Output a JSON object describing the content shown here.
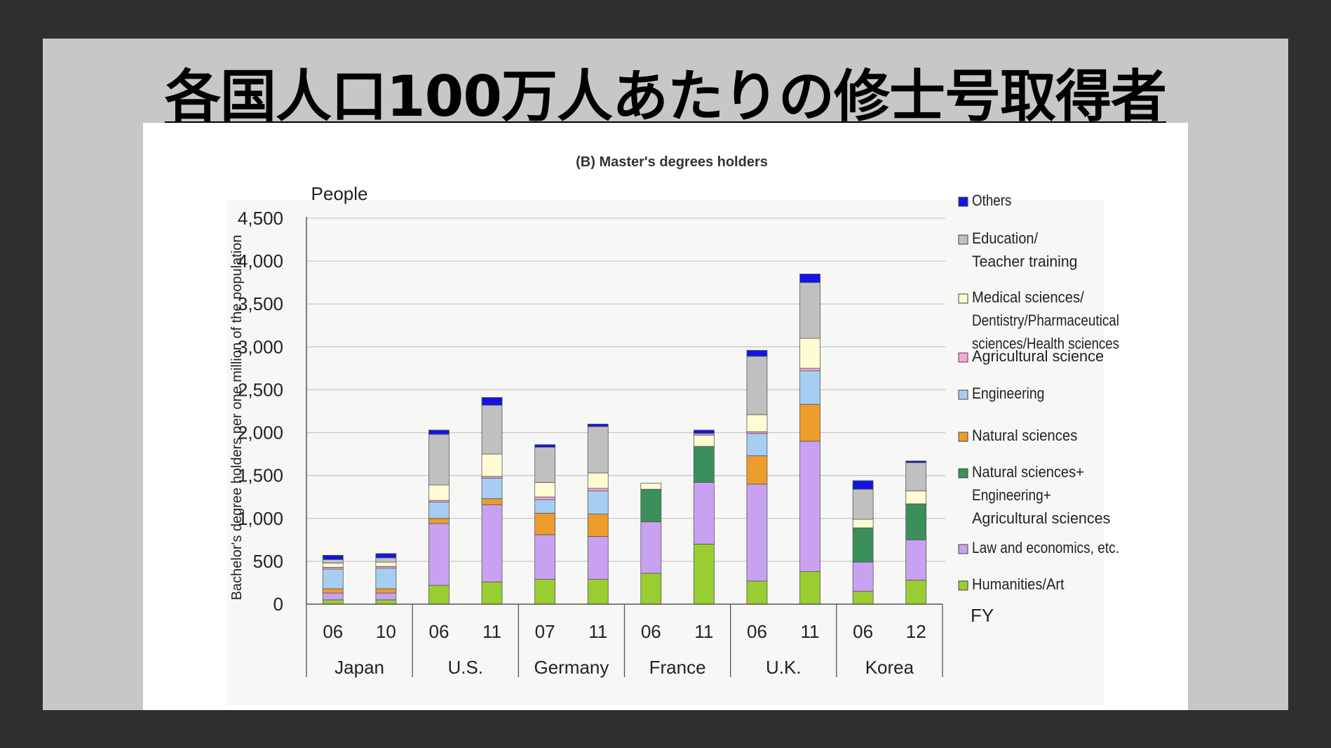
{
  "slide": {
    "title": "各国人口100万人あたりの修士号取得者"
  },
  "chart_data": {
    "type": "bar",
    "stacked": true,
    "title": "(B) Master's degrees holders",
    "unit_label": "People",
    "ylabel": "Bachelor's degree holders per one million of the population",
    "xlabel": "FY",
    "ylim": [
      0,
      4500
    ],
    "yticks": [
      0,
      500,
      1000,
      1500,
      2000,
      2500,
      3000,
      3500,
      4000,
      4500
    ],
    "ytick_labels": [
      "0",
      "500",
      "1,000",
      "1,500",
      "2,000",
      "2,500",
      "3,000",
      "3,500",
      "4,000",
      "4,500"
    ],
    "grid": true,
    "legend_position": "right",
    "groups": [
      {
        "name": "Japan",
        "years": [
          "06",
          "10"
        ]
      },
      {
        "name": "U.S.",
        "years": [
          "06",
          "11"
        ]
      },
      {
        "name": "Germany",
        "years": [
          "07",
          "11"
        ]
      },
      {
        "name": "France",
        "years": [
          "06",
          "11"
        ]
      },
      {
        "name": "U.K.",
        "years": [
          "06",
          "11"
        ]
      },
      {
        "name": "Korea",
        "years": [
          "06",
          "12"
        ]
      }
    ],
    "series": [
      {
        "name": "Humanities/Art",
        "color": "#9acd32",
        "values": [
          50,
          50,
          220,
          260,
          290,
          290,
          360,
          700,
          270,
          380,
          150,
          280
        ]
      },
      {
        "name": "Law and economics, etc.",
        "color": "#c8a2f0",
        "values": [
          80,
          80,
          720,
          900,
          520,
          500,
          600,
          720,
          1130,
          1520,
          340,
          470
        ]
      },
      {
        "name": "Natural sciences+\nEngineering+\nAgricultural sciences",
        "color": "#3a8f5a",
        "values": [
          0,
          0,
          0,
          0,
          0,
          0,
          380,
          420,
          0,
          0,
          400,
          420
        ]
      },
      {
        "name": "Natural sciences",
        "color": "#ed9c2e",
        "values": [
          50,
          50,
          60,
          70,
          250,
          260,
          0,
          0,
          330,
          430,
          0,
          0
        ]
      },
      {
        "name": "Engineering",
        "color": "#a8cdf2",
        "values": [
          230,
          240,
          190,
          240,
          160,
          270,
          0,
          0,
          260,
          390,
          0,
          0
        ]
      },
      {
        "name": "Agricultural science",
        "color": "#f7a8d2",
        "values": [
          20,
          20,
          20,
          20,
          30,
          30,
          0,
          0,
          20,
          30,
          0,
          0
        ]
      },
      {
        "name": "Medical sciences/\nDentistry/Pharmaceutical\nsciences/Health sciences",
        "color": "#fffbd2",
        "values": [
          50,
          50,
          180,
          260,
          170,
          180,
          70,
          130,
          200,
          350,
          100,
          150
        ]
      },
      {
        "name": "Education/\nTeacher training",
        "color": "#c0c0c0",
        "values": [
          40,
          50,
          590,
          570,
          410,
          540,
          0,
          20,
          680,
          650,
          350,
          330
        ]
      },
      {
        "name": "Others",
        "color": "#1414e0",
        "values": [
          50,
          50,
          50,
          90,
          30,
          30,
          0,
          40,
          70,
          100,
          100,
          20
        ]
      }
    ]
  }
}
